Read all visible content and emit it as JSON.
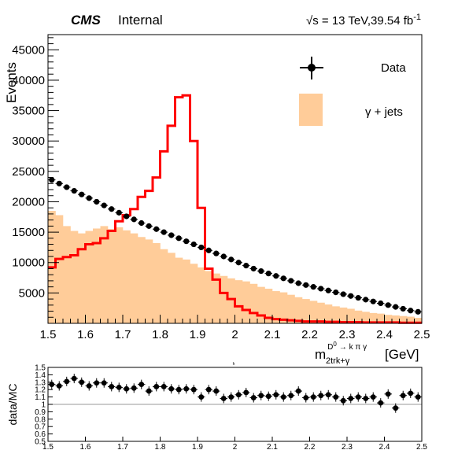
{
  "header": {
    "experiment": "CMS",
    "status": "Internal",
    "lumi_sqrt": "√s",
    "lumi_text": " = 13 TeV,39.54 fb",
    "lumi_exp": "-1"
  },
  "legend": {
    "data_label": "Data",
    "mc_label": "γ + jets"
  },
  "colors": {
    "data": "#000000",
    "mc_fill": "#ffcc99",
    "signal": "#ff0000"
  },
  "chart_data": [
    {
      "type": "bar",
      "ylabel": "Events",
      "xlabel_main": "m",
      "xlabel_sup": "D",
      "xlabel_sup2": "0",
      "xlabel_decay": "→ k π γ",
      "xlabel_sub": "2trk+γ",
      "xlabel_unit": "[GeV]",
      "xlim": [
        1.5,
        2.5
      ],
      "ylim": [
        0,
        47500
      ],
      "xticks": [
        "1.5",
        "1.6",
        "1.7",
        "1.8",
        "1.9",
        "2",
        "2.1",
        "2.2",
        "2.3",
        "2.4",
        "2.5"
      ],
      "yticks": [
        "5000",
        "10000",
        "15000",
        "20000",
        "25000",
        "30000",
        "35000",
        "40000",
        "45000"
      ],
      "bin_edges": [
        1.5,
        1.52,
        1.54,
        1.56,
        1.58,
        1.6,
        1.62,
        1.64,
        1.66,
        1.68,
        1.7,
        1.72,
        1.74,
        1.76,
        1.78,
        1.8,
        1.82,
        1.84,
        1.86,
        1.88,
        1.9,
        1.92,
        1.94,
        1.96,
        1.98,
        2.0,
        2.02,
        2.04,
        2.06,
        2.08,
        2.1,
        2.12,
        2.14,
        2.16,
        2.18,
        2.2,
        2.22,
        2.24,
        2.26,
        2.28,
        2.3,
        2.32,
        2.34,
        2.36,
        2.38,
        2.4,
        2.42,
        2.44,
        2.46,
        2.48,
        2.5
      ],
      "series": [
        {
          "name": "Data",
          "kind": "points",
          "values": [
            23600,
            23000,
            22400,
            21800,
            21200,
            20600,
            20000,
            19400,
            18800,
            18200,
            17600,
            17100,
            16500,
            16000,
            15500,
            15000,
            14500,
            14000,
            13500,
            13000,
            12500,
            12000,
            11500,
            11000,
            10500,
            10000,
            9500,
            9000,
            8600,
            8200,
            7800,
            7400,
            7000,
            6600,
            6300,
            6000,
            5700,
            5400,
            5100,
            4800,
            4500,
            4200,
            3900,
            3600,
            3300,
            3000,
            2700,
            2400,
            2100,
            1900
          ]
        },
        {
          "name": "γ + jets",
          "kind": "fill",
          "values": [
            18500,
            17800,
            16000,
            15200,
            14800,
            15200,
            15600,
            16000,
            15500,
            15800,
            15300,
            14800,
            14200,
            13800,
            13200,
            12200,
            11600,
            10800,
            10500,
            9800,
            9200,
            8600,
            8200,
            7800,
            7400,
            7100,
            6900,
            6500,
            6000,
            5700,
            5300,
            5100,
            4700,
            4300,
            4000,
            3700,
            3400,
            3100,
            2800,
            2600,
            2400,
            2100,
            1900,
            1700,
            1600,
            1400,
            1300,
            1200,
            1100,
            900
          ]
        },
        {
          "kind": "step",
          "values": [
            9200,
            10600,
            10900,
            11200,
            12200,
            13000,
            13200,
            14000,
            15200,
            16800,
            17800,
            18800,
            20800,
            21800,
            24000,
            28300,
            32500,
            37200,
            37500,
            30000,
            19000,
            9000,
            7200,
            5000,
            4000,
            2800,
            2200,
            1700,
            1300,
            900,
            700,
            600,
            500,
            400,
            300,
            300,
            300,
            250,
            250,
            200,
            200,
            200,
            150,
            150,
            150,
            150,
            150,
            100,
            100,
            100
          ]
        }
      ]
    },
    {
      "type": "scatter",
      "ylabel": "data/MC",
      "title": "h",
      "xlim": [
        1.5,
        2.5
      ],
      "ylim": [
        0.5,
        1.5
      ],
      "reference_line": 1.0,
      "xticks": [
        "1.5",
        "1.6",
        "1.7",
        "1.8",
        "1.9",
        "2",
        "2.1",
        "2.2",
        "2.3",
        "2.4",
        "2.5"
      ],
      "yticks": [
        "0.5",
        "0.6",
        "0.7",
        "0.8",
        "0.9",
        "1",
        "1.1",
        "1.2",
        "1.3",
        "1.4",
        "1.5"
      ],
      "x": [
        1.51,
        1.53,
        1.55,
        1.57,
        1.59,
        1.61,
        1.63,
        1.65,
        1.67,
        1.69,
        1.71,
        1.73,
        1.75,
        1.77,
        1.79,
        1.81,
        1.83,
        1.85,
        1.87,
        1.89,
        1.91,
        1.93,
        1.95,
        1.97,
        1.99,
        2.01,
        2.03,
        2.05,
        2.07,
        2.09,
        2.11,
        2.13,
        2.15,
        2.17,
        2.19,
        2.21,
        2.23,
        2.25,
        2.27,
        2.29,
        2.31,
        2.33,
        2.35,
        2.37,
        2.39,
        2.41,
        2.43,
        2.45,
        2.47,
        2.49
      ],
      "values": [
        1.27,
        1.25,
        1.31,
        1.35,
        1.3,
        1.25,
        1.29,
        1.29,
        1.24,
        1.23,
        1.21,
        1.22,
        1.27,
        1.18,
        1.24,
        1.24,
        1.21,
        1.2,
        1.21,
        1.2,
        1.1,
        1.2,
        1.18,
        1.08,
        1.1,
        1.13,
        1.16,
        1.09,
        1.12,
        1.11,
        1.13,
        1.1,
        1.12,
        1.18,
        1.09,
        1.1,
        1.12,
        1.13,
        1.1,
        1.05,
        1.08,
        1.1,
        1.08,
        1.1,
        1.02,
        1.14,
        0.95,
        1.12,
        1.15,
        1.1
      ]
    }
  ]
}
